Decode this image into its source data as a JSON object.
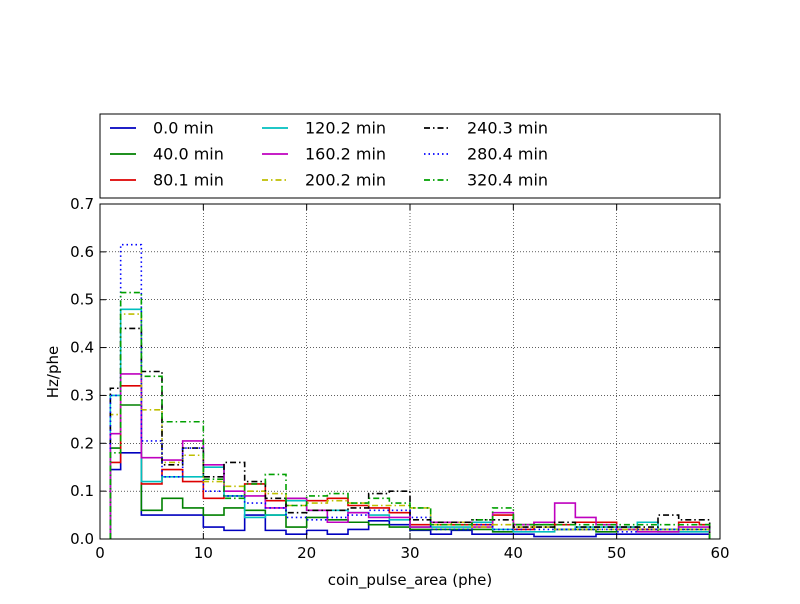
{
  "chart_data": {
    "type": "step-histogram",
    "title": "",
    "xlabel": "coin_pulse_area (phe)",
    "ylabel": "Hz/phe",
    "xlim": [
      0,
      60
    ],
    "ylim": [
      0,
      0.7
    ],
    "x_ticks": [
      0,
      10,
      20,
      30,
      40,
      50,
      60
    ],
    "y_ticks": [
      0.0,
      0.1,
      0.2,
      0.3,
      0.4,
      0.5,
      0.6,
      0.7
    ],
    "grid": true,
    "legend_position": "top, above plot, 4 columns",
    "bin_edges": [
      1,
      2,
      4,
      6,
      8,
      10,
      12,
      14,
      16,
      18,
      20,
      22,
      24,
      26,
      28,
      30,
      32,
      34,
      36,
      38,
      40,
      42,
      44,
      46,
      48,
      50,
      52,
      54,
      56,
      58,
      59
    ],
    "series": [
      {
        "name": "0.0 min",
        "color": "#0000bf",
        "dash": "solid",
        "values": [
          0.145,
          0.18,
          0.05,
          0.05,
          0.05,
          0.025,
          0.018,
          0.05,
          0.018,
          0.01,
          0.018,
          0.01,
          0.02,
          0.038,
          0.03,
          0.018,
          0.01,
          0.018,
          0.01,
          0.01,
          0.01,
          0.005,
          0.005,
          0.005,
          0.01,
          0.01,
          0.01,
          0.01,
          0.01,
          0.01
        ]
      },
      {
        "name": "40.0 min",
        "color": "#008000",
        "dash": "solid",
        "values": [
          0.19,
          0.28,
          0.06,
          0.085,
          0.065,
          0.05,
          0.065,
          0.06,
          0.05,
          0.025,
          0.045,
          0.04,
          0.035,
          0.03,
          0.025,
          0.02,
          0.02,
          0.02,
          0.02,
          0.015,
          0.03,
          0.03,
          0.02,
          0.02,
          0.015,
          0.02,
          0.02,
          0.015,
          0.02,
          0.02
        ]
      },
      {
        "name": "80.1 min",
        "color": "#dd0000",
        "dash": "solid",
        "values": [
          0.16,
          0.32,
          0.115,
          0.145,
          0.12,
          0.085,
          0.09,
          0.115,
          0.08,
          0.08,
          0.08,
          0.085,
          0.07,
          0.065,
          0.055,
          0.03,
          0.03,
          0.03,
          0.03,
          0.05,
          0.02,
          0.035,
          0.03,
          0.035,
          0.035,
          0.025,
          0.02,
          0.02,
          0.035,
          0.03
        ]
      },
      {
        "name": "120.2 min",
        "color": "#00bfbf",
        "dash": "solid",
        "values": [
          0.3,
          0.48,
          0.12,
          0.13,
          0.13,
          0.15,
          0.09,
          0.045,
          0.05,
          0.08,
          0.06,
          0.06,
          0.055,
          0.05,
          0.04,
          0.025,
          0.025,
          0.025,
          0.035,
          0.02,
          0.015,
          0.015,
          0.02,
          0.025,
          0.025,
          0.025,
          0.035,
          0.02,
          0.015,
          0.015
        ]
      },
      {
        "name": "160.2 min",
        "color": "#bf00bf",
        "dash": "solid",
        "values": [
          0.22,
          0.345,
          0.17,
          0.165,
          0.205,
          0.155,
          0.1,
          0.09,
          0.065,
          0.085,
          0.06,
          0.035,
          0.055,
          0.045,
          0.045,
          0.025,
          0.035,
          0.035,
          0.025,
          0.055,
          0.03,
          0.035,
          0.075,
          0.045,
          0.03,
          0.02,
          0.015,
          0.015,
          0.025,
          0.025
        ]
      },
      {
        "name": "200.2 min",
        "color": "#bfbf00",
        "dash": "dashdot",
        "values": [
          0.26,
          0.47,
          0.27,
          0.16,
          0.175,
          0.12,
          0.11,
          0.1,
          0.095,
          0.07,
          0.075,
          0.08,
          0.075,
          0.07,
          0.07,
          0.065,
          0.03,
          0.035,
          0.025,
          0.03,
          0.025,
          0.025,
          0.02,
          0.02,
          0.02,
          0.02,
          0.02,
          0.02,
          0.02,
          0.02
        ]
      },
      {
        "name": "240.3 min",
        "color": "#000000",
        "dash": "dashdot",
        "values": [
          0.315,
          0.44,
          0.35,
          0.155,
          0.19,
          0.13,
          0.16,
          0.12,
          0.085,
          0.055,
          0.06,
          0.06,
          0.065,
          0.095,
          0.1,
          0.04,
          0.035,
          0.035,
          0.04,
          0.04,
          0.025,
          0.025,
          0.035,
          0.025,
          0.025,
          0.025,
          0.025,
          0.05,
          0.04,
          0.04
        ]
      },
      {
        "name": "280.4 min",
        "color": "#0000ff",
        "dash": "dotted",
        "values": [
          0.3,
          0.615,
          0.205,
          0.13,
          0.19,
          0.1,
          0.09,
          0.075,
          0.065,
          0.045,
          0.04,
          0.045,
          0.05,
          0.06,
          0.06,
          0.045,
          0.02,
          0.02,
          0.03,
          0.02,
          0.02,
          0.02,
          0.02,
          0.02,
          0.02,
          0.015,
          0.02,
          0.02,
          0.02,
          0.02
        ]
      },
      {
        "name": "320.4 min",
        "color": "#00a000",
        "dash": "dashdot",
        "values": [
          0.18,
          0.515,
          0.34,
          0.245,
          0.245,
          0.125,
          0.085,
          0.115,
          0.135,
          0.07,
          0.09,
          0.095,
          0.075,
          0.085,
          0.075,
          0.065,
          0.03,
          0.03,
          0.04,
          0.065,
          0.03,
          0.03,
          0.03,
          0.03,
          0.03,
          0.03,
          0.03,
          0.03,
          0.03,
          0.03
        ]
      }
    ]
  }
}
